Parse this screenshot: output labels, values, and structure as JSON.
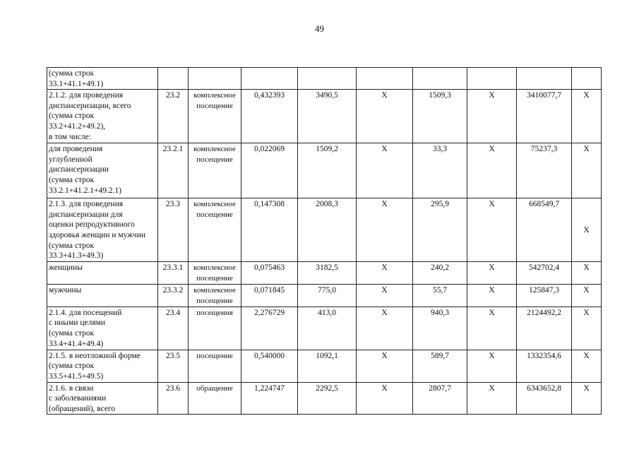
{
  "page_number": "49",
  "rows": [
    {
      "name": "(сумма строк\n33.1+41.1+49.1)",
      "code": "",
      "unit": "",
      "c1": "",
      "c2": "",
      "c3": "",
      "c4": "",
      "c5": "",
      "c6": "",
      "c7": ""
    },
    {
      "name": "2.1.2. для проведения\nдиспансеризации, всего\n(сумма строк\n33.2+41.2+49.2),\nв том числе:",
      "code": "23.2",
      "unit": "комплексное\nпосещение",
      "c1": "0,432393",
      "c2": "3490,5",
      "c3": "X",
      "c4": "1509,3",
      "c5": "X",
      "c6": "3410077,7",
      "c7": "X"
    },
    {
      "name": "для проведения\nуглубленной\nдиспансеризации\n(сумма строк\n33.2.1+41.2.1+49.2.1)",
      "code": "23.2.1",
      "unit": "комплексное\nпосещение",
      "c1": "0,022069",
      "c2": "1509,2",
      "c3": "X",
      "c4": "33,3",
      "c5": "X",
      "c6": "75237,3",
      "c7": "X"
    },
    {
      "name": "2.1.3. для проведения\nдиспансеризации для\nоценки репродуктивного\nздоровья женщин и мужчин\n(сумма строк\n33.3+41.3+49.3)",
      "code": "23.3",
      "unit": "комплексное\nпосещение",
      "c1": "0,147308",
      "c2": "2008,3",
      "c3": "X",
      "c4": "295,9",
      "c5": "X",
      "c6": "668549,7",
      "c7": "X"
    },
    {
      "name": "женщины",
      "code": "23.3.1",
      "unit": "комплексное\nпосещение",
      "c1": "0,075463",
      "c2": "3182,5",
      "c3": "X",
      "c4": "240,2",
      "c5": "X",
      "c6": "542702,4",
      "c7": "X"
    },
    {
      "name": "мужчины",
      "code": "23.3.2",
      "unit": "комплексное\nпосещение",
      "c1": "0,071845",
      "c2": "775,0",
      "c3": "X",
      "c4": "55,7",
      "c5": "X",
      "c6": "125847,3",
      "c7": "X"
    },
    {
      "name": "2.1.4. для посещений\nс иными целями\n(сумма строк\n33.4+41.4+49.4)",
      "code": "23.4",
      "unit": "посещения",
      "c1": "2,276729",
      "c2": "413,0",
      "c3": "X",
      "c4": "940,3",
      "c5": "X",
      "c6": "2124492,2",
      "c7": "X"
    },
    {
      "name": "2.1.5. в неотложной форме\n(сумма строк\n33.5+41.5+49.5)",
      "code": "23.5",
      "unit": "посещение",
      "c1": "0,540000",
      "c2": "1092,1",
      "c3": "X",
      "c4": "589,7",
      "c5": "X",
      "c6": "1332354,6",
      "c7": "X"
    },
    {
      "name": "2.1.6. в связи\nс заболеваниями\n(обращений), всего",
      "code": "23.6",
      "unit": "обращение",
      "c1": "1,224747",
      "c2": "2292,5",
      "c3": "X",
      "c4": "2807,7",
      "c5": "X",
      "c6": "6343652,8",
      "c7": "X"
    }
  ]
}
